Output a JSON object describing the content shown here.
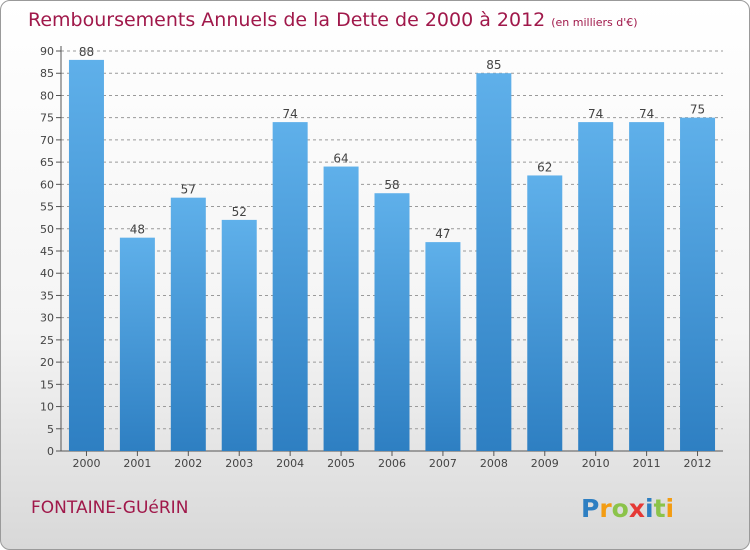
{
  "title": "Remboursements Annuels de la Dette de 2000 à 2012",
  "unit_label": "(en milliers d'€)",
  "commune": "FONTAINE-GUéRIN",
  "logo_text": "Proxiti",
  "colors": {
    "title": "#a0184a",
    "bar_top": "#5fb0ea",
    "bar_bottom": "#2e7fc2",
    "grid": "#9a9a9a"
  },
  "chart_data": {
    "type": "bar",
    "categories": [
      "2000",
      "2001",
      "2002",
      "2003",
      "2004",
      "2005",
      "2006",
      "2007",
      "2008",
      "2009",
      "2010",
      "2011",
      "2012"
    ],
    "values": [
      88,
      48,
      57,
      52,
      74,
      64,
      58,
      47,
      85,
      62,
      74,
      74,
      75
    ],
    "ylim": [
      0,
      90
    ],
    "y_ticks": [
      0,
      5,
      10,
      15,
      20,
      25,
      30,
      35,
      40,
      45,
      50,
      55,
      60,
      65,
      70,
      75,
      80,
      85,
      90
    ],
    "grid": true,
    "grid_style": "dashed-horizontal",
    "data_labels": true
  }
}
